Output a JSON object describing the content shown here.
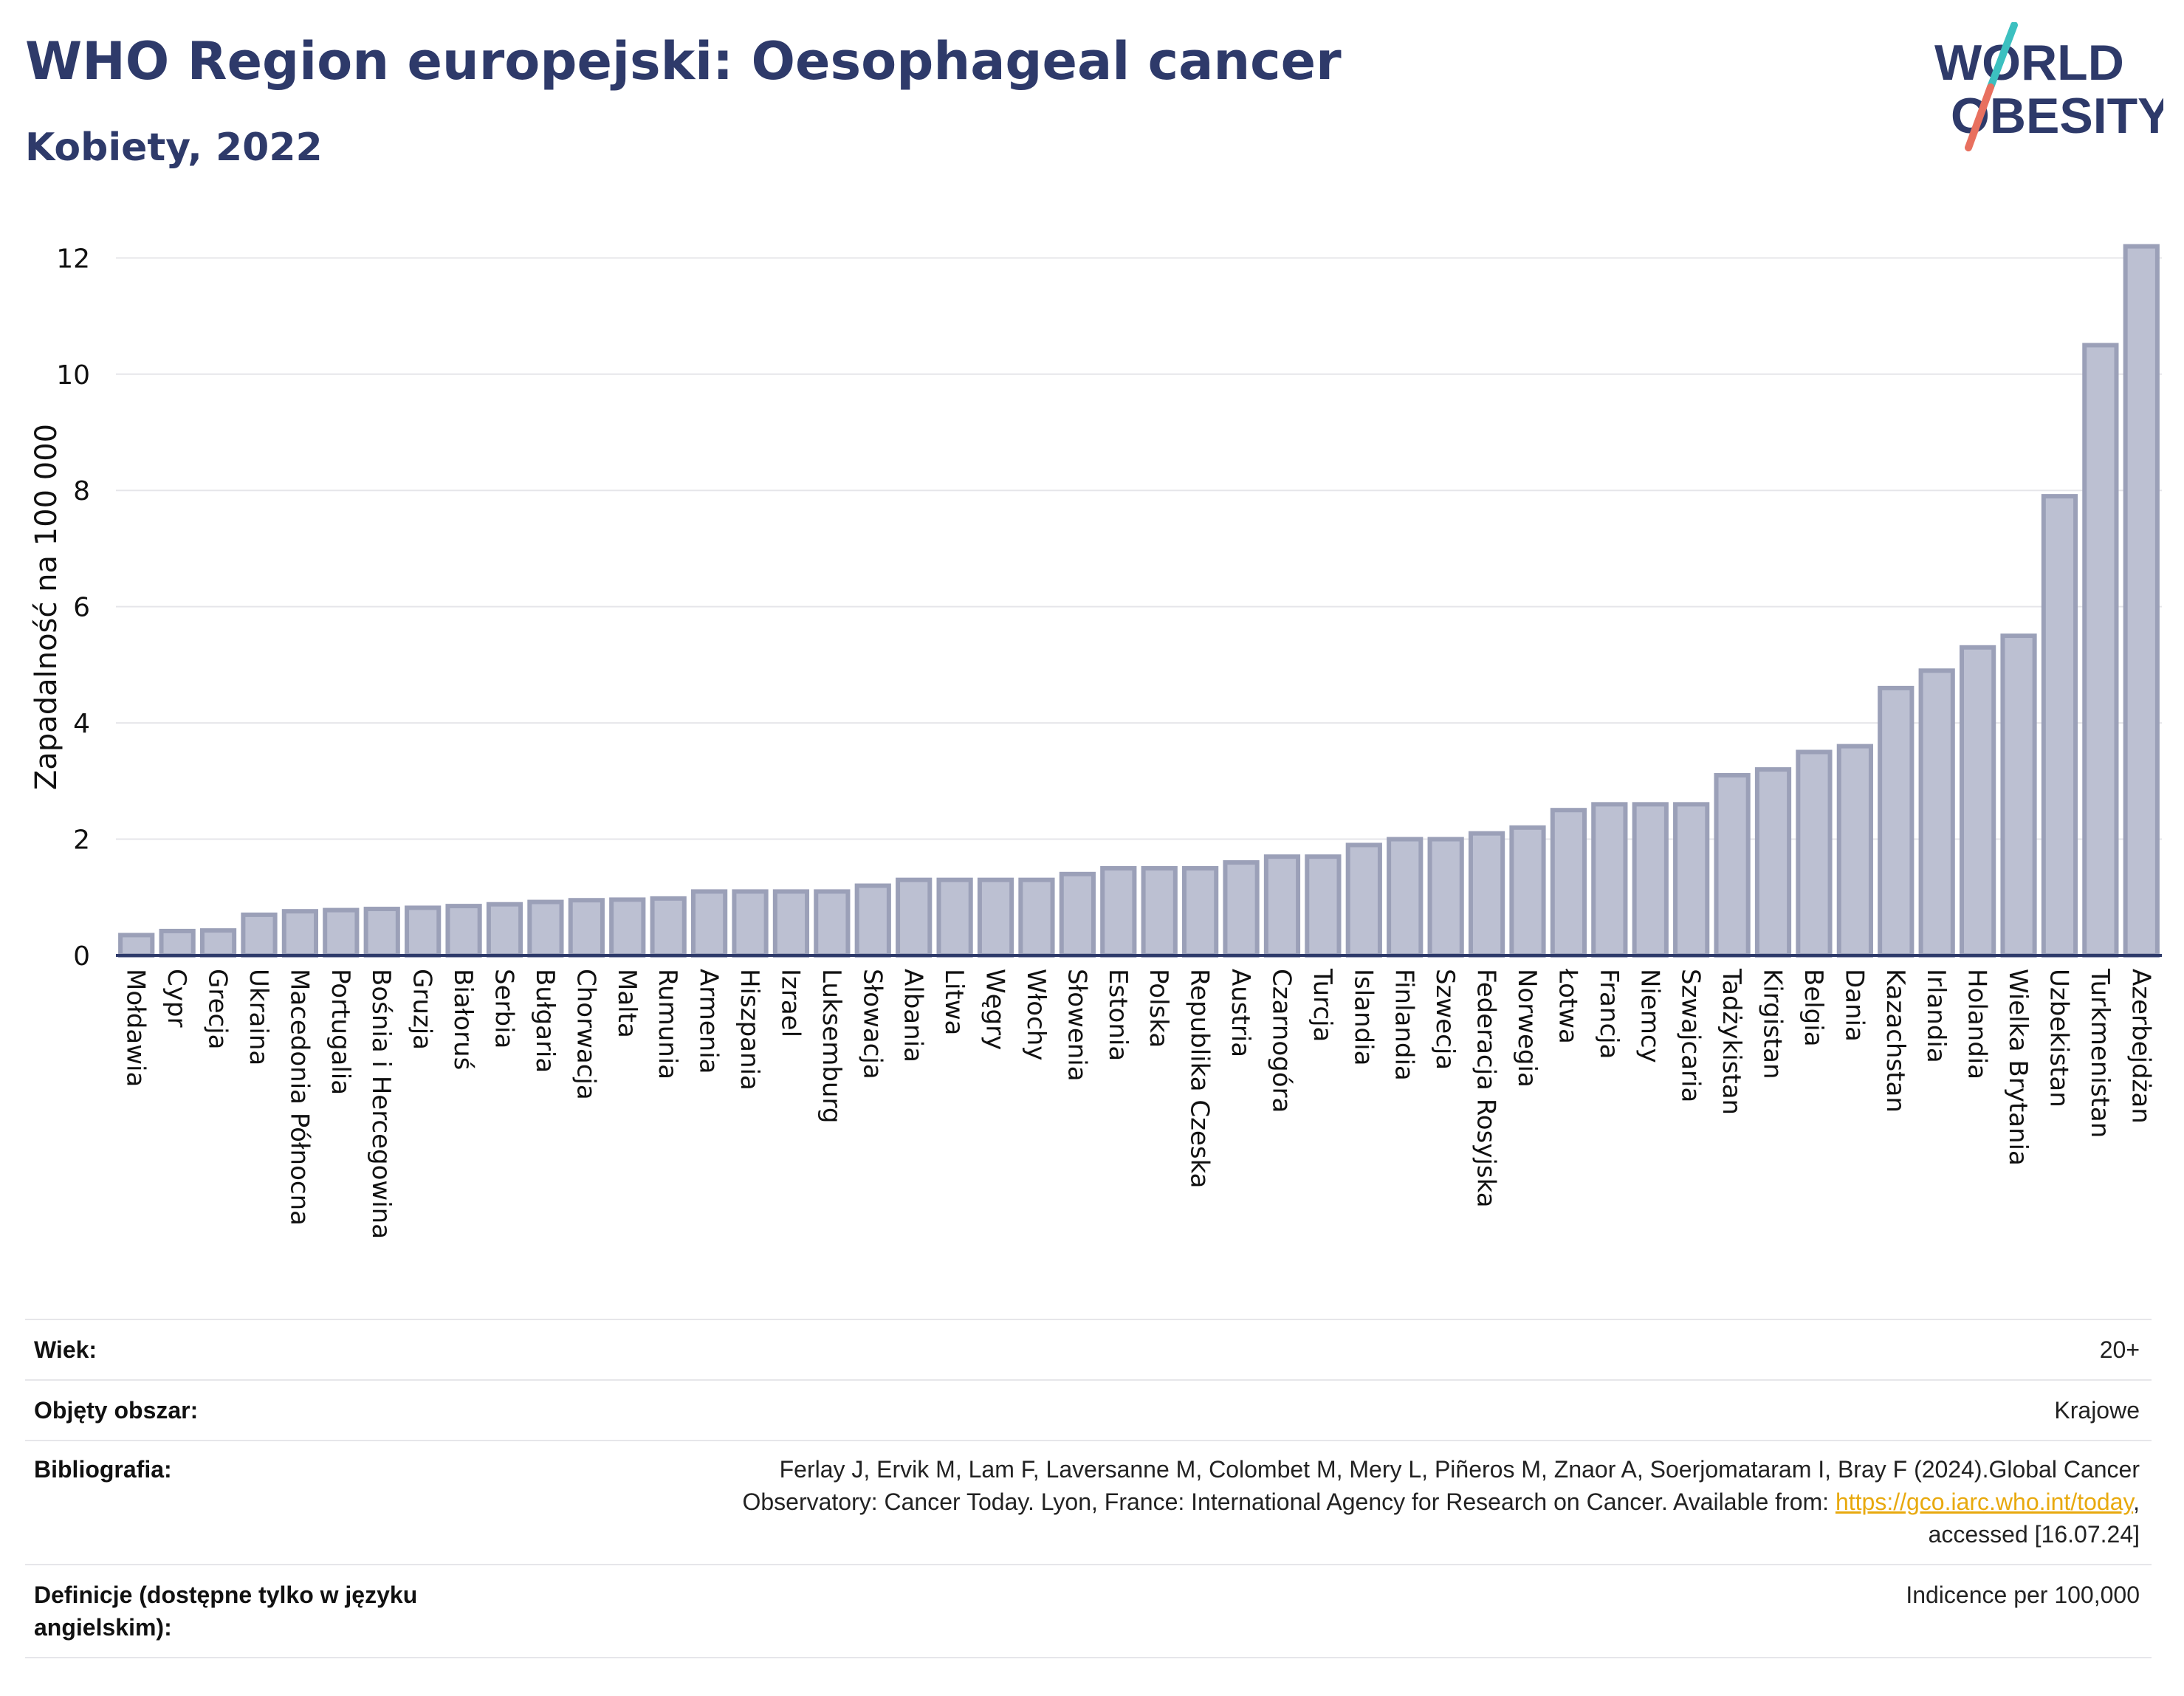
{
  "header": {
    "title": "WHO Region europejski: Oesophageal cancer",
    "subtitle": "Kobiety, 2022"
  },
  "logo": {
    "line1": "WORLD",
    "line2": "OBESITY",
    "colors": {
      "text": "#2e3a6a",
      "slash_top": "#3cc0c0",
      "slash_bottom": "#e8705f"
    }
  },
  "colors": {
    "bar_fill": "#bcc0d2",
    "bar_stroke": "#9ba0b8",
    "axis": "#2e3a6a",
    "grid": "#e6e6ea"
  },
  "chart_data": {
    "type": "bar",
    "ylabel": "Zapadalność na 100 000",
    "ylim": [
      0,
      12.5
    ],
    "yticks": [
      0,
      2,
      4,
      6,
      8,
      10,
      12
    ],
    "grid": true,
    "categories": [
      "Mołdawia",
      "Cypr",
      "Grecja",
      "Ukraina",
      "Macedonia Północna",
      "Portugalia",
      "Bośnia i Hercegowina",
      "Gruzja",
      "Białoruś",
      "Serbia",
      "Bułgaria",
      "Chorwacja",
      "Malta",
      "Rumunia",
      "Armenia",
      "Hiszpania",
      "Izrael",
      "Luksemburg",
      "Słowacja",
      "Albania",
      "Litwa",
      "Węgry",
      "Włochy",
      "Słowenia",
      "Estonia",
      "Polska",
      "Republika Czeska",
      "Austria",
      "Czarnogóra",
      "Turcja",
      "Islandia",
      "Finlandia",
      "Szwecja",
      "Federacja Rosyjska",
      "Norwegia",
      "Łotwa",
      "Francja",
      "Niemcy",
      "Szwajcaria",
      "Tadżykistan",
      "Kirgistan",
      "Belgia",
      "Dania",
      "Kazachstan",
      "Irlandia",
      "Holandia",
      "Wielka Brytania",
      "Uzbekistan",
      "Turkmenistan",
      "Azerbejdżan"
    ],
    "values": [
      0.35,
      0.42,
      0.43,
      0.7,
      0.76,
      0.78,
      0.8,
      0.82,
      0.85,
      0.88,
      0.92,
      0.95,
      0.96,
      0.98,
      1.1,
      1.1,
      1.1,
      1.1,
      1.2,
      1.3,
      1.3,
      1.3,
      1.3,
      1.4,
      1.5,
      1.5,
      1.5,
      1.6,
      1.7,
      1.7,
      1.9,
      2.0,
      2.0,
      2.1,
      2.2,
      2.5,
      2.6,
      2.6,
      2.6,
      3.1,
      3.2,
      3.5,
      3.6,
      4.6,
      4.9,
      5.3,
      5.5,
      7.9,
      10.5,
      12.2
    ]
  },
  "meta": {
    "rows": [
      {
        "label": "Wiek:",
        "value": "20+"
      },
      {
        "label": "Objęty obszar:",
        "value": "Krajowe"
      },
      {
        "label": "Bibliografia:",
        "value_line1": "Ferlay J, Ervik M, Lam F, Laversanne M, Colombet M, Mery L, Piñeros M, Znaor A, Soerjomataram I, Bray F (2024).Global Cancer",
        "value_line2_pre": "Observatory: Cancer Today. Lyon, France: International Agency for Research on Cancer. Available from: ",
        "link": "https://gco.iarc.who.int/today",
        "value_line2_post": ",",
        "value_line3": "accessed [16.07.24]"
      },
      {
        "label_line1": "Definicje (dostępne tylko w języku",
        "label_line2": "angielskim):",
        "value": "Indicence per 100,000"
      }
    ]
  }
}
